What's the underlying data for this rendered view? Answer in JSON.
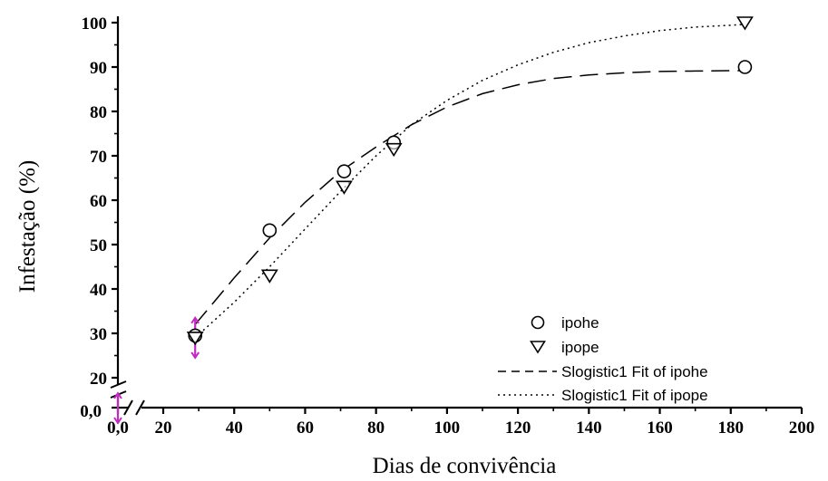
{
  "chart_data": {
    "type": "scatter",
    "title": "",
    "xlabel": "Dias de convivência",
    "ylabel": "Infestação (%)",
    "xlim": [
      20,
      200
    ],
    "ylim": [
      20,
      100
    ],
    "x_ticks": [
      "20",
      "40",
      "60",
      "80",
      "100",
      "120",
      "140",
      "160",
      "180",
      "200"
    ],
    "y_ticks": [
      "20",
      "30",
      "40",
      "50",
      "60",
      "70",
      "80",
      "90",
      "100"
    ],
    "axis_break": {
      "x_origin_label": "0,0",
      "y_origin_label": "0,0"
    },
    "grid": false,
    "legend_position": "bottom-right",
    "series": [
      {
        "name": "ipohe",
        "marker": "circle",
        "points": [
          {
            "x": 29,
            "y": 29.5
          },
          {
            "x": 50,
            "y": 53.2
          },
          {
            "x": 71,
            "y": 66.5
          },
          {
            "x": 85,
            "y": 73.0
          },
          {
            "x": 184,
            "y": 90.0
          }
        ]
      },
      {
        "name": "ipope",
        "marker": "triangle-down",
        "points": [
          {
            "x": 29,
            "y": 29.0
          },
          {
            "x": 50,
            "y": 43.0
          },
          {
            "x": 71,
            "y": 63.0
          },
          {
            "x": 85,
            "y": 71.5
          },
          {
            "x": 184,
            "y": 100.0
          }
        ]
      }
    ],
    "fits": [
      {
        "name": "Slogistic1 Fit of ipohe",
        "style": "dashed",
        "points": [
          {
            "x": 29,
            "y": 32.0
          },
          {
            "x": 40,
            "y": 42.5
          },
          {
            "x": 50,
            "y": 51.5
          },
          {
            "x": 60,
            "y": 59.5
          },
          {
            "x": 70,
            "y": 66.5
          },
          {
            "x": 80,
            "y": 72.0
          },
          {
            "x": 90,
            "y": 77.0
          },
          {
            "x": 100,
            "y": 81.0
          },
          {
            "x": 110,
            "y": 84.0
          },
          {
            "x": 120,
            "y": 86.0
          },
          {
            "x": 130,
            "y": 87.4
          },
          {
            "x": 140,
            "y": 88.2
          },
          {
            "x": 150,
            "y": 88.7
          },
          {
            "x": 160,
            "y": 89.0
          },
          {
            "x": 170,
            "y": 89.1
          },
          {
            "x": 184,
            "y": 89.2
          }
        ]
      },
      {
        "name": "Slogistic1 Fit of ipope",
        "style": "dotted",
        "points": [
          {
            "x": 29,
            "y": 29.0
          },
          {
            "x": 40,
            "y": 37.0
          },
          {
            "x": 50,
            "y": 45.0
          },
          {
            "x": 60,
            "y": 53.5
          },
          {
            "x": 70,
            "y": 62.0
          },
          {
            "x": 80,
            "y": 70.0
          },
          {
            "x": 90,
            "y": 77.0
          },
          {
            "x": 100,
            "y": 82.5
          },
          {
            "x": 110,
            "y": 87.0
          },
          {
            "x": 120,
            "y": 90.5
          },
          {
            "x": 130,
            "y": 93.3
          },
          {
            "x": 140,
            "y": 95.5
          },
          {
            "x": 150,
            "y": 97.0
          },
          {
            "x": 160,
            "y": 98.2
          },
          {
            "x": 170,
            "y": 99.0
          },
          {
            "x": 184,
            "y": 99.6
          }
        ]
      }
    ],
    "error_bars": [
      {
        "x": 29,
        "y_low": 24.5,
        "y_high": 33.5
      },
      {
        "x": 0,
        "y_low": 0,
        "y_high": 0
      }
    ],
    "colors": {
      "axis": "#000000",
      "marker": "#000000",
      "error_bar": "#c02cc0"
    }
  }
}
